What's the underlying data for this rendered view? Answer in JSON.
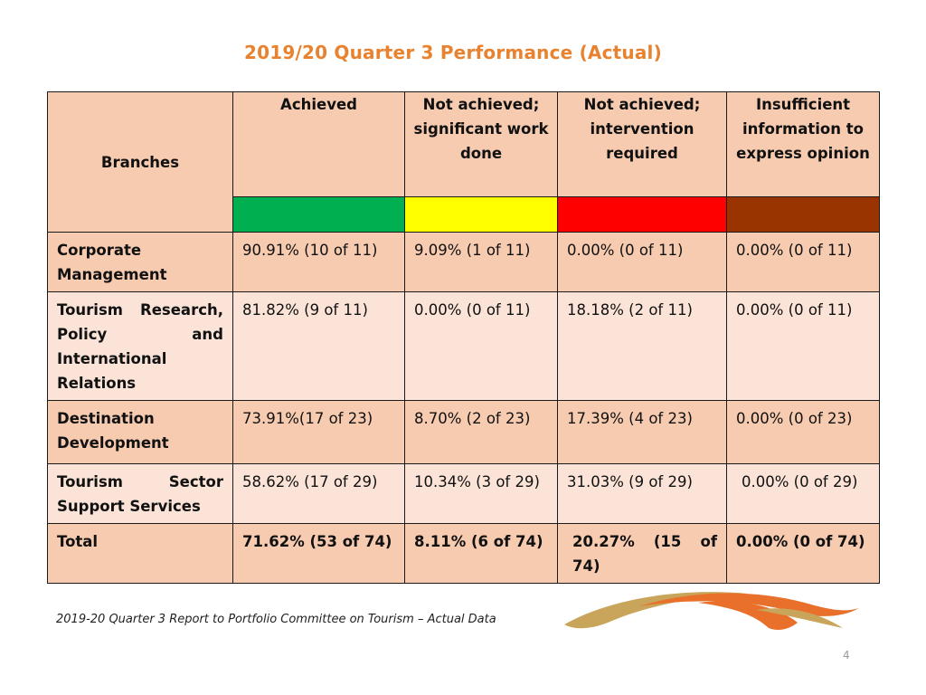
{
  "title": "2019/20 Quarter 3 Performance (Actual)",
  "table": {
    "headers": {
      "branches": "Branches",
      "achieved": "Achieved",
      "not_achieved_sig": "Not  achieved; significant work done",
      "not_achieved_int": "Not achieved; intervention required",
      "insufficient": "Insufficient information  to express opinion"
    },
    "status_colors": {
      "achieved": "#00b050",
      "not_achieved_sig": "#ffff00",
      "not_achieved_int": "#ff0000",
      "insufficient": "#993300"
    },
    "rows": [
      {
        "branch": "Corporate Management",
        "achieved": "90.91% (10 of 11)",
        "not_achieved_sig": "9.09% (1 of 11)",
        "not_achieved_int": "0.00% (0 of 11)",
        "insufficient": "0.00% (0 of 11)"
      },
      {
        "branch": "Tourism Research, Policy and International Relations",
        "achieved": "81.82% (9 of 11)",
        "not_achieved_sig": "0.00% (0 of 11)",
        "not_achieved_int": "18.18% (2 of 11)",
        "insufficient": "0.00% (0 of 11)"
      },
      {
        "branch": "Destination Development",
        "achieved": "73.91%(17 of 23)",
        "not_achieved_sig": "8.70% (2 of 23)",
        "not_achieved_int": "17.39% (4 of 23)",
        "insufficient": "0.00% (0 of 23)"
      },
      {
        "branch": "Tourism Sector Support Services",
        "achieved": "58.62% (17 of 29)",
        "not_achieved_sig": "10.34% (3 of 29)",
        "not_achieved_int": "31.03% (9 of 29)",
        "insufficient": "0.00% (0 of 29)"
      }
    ],
    "total": {
      "branch": "Total",
      "achieved": "71.62% (53 of 74)",
      "not_achieved_sig": "8.11% (6 of 74)",
      "not_achieved_int": "20.27% (15 of 74)",
      "insufficient": "0.00% (0 of 74)"
    }
  },
  "footer": "2019-20 Quarter 3 Report to Portfolio Committee on Tourism  – Actual Data",
  "page_number": "4",
  "logo_icon": "swoosh-logo",
  "logo_colors": {
    "orange": "#e8702a",
    "gold": "#c8a55a"
  }
}
